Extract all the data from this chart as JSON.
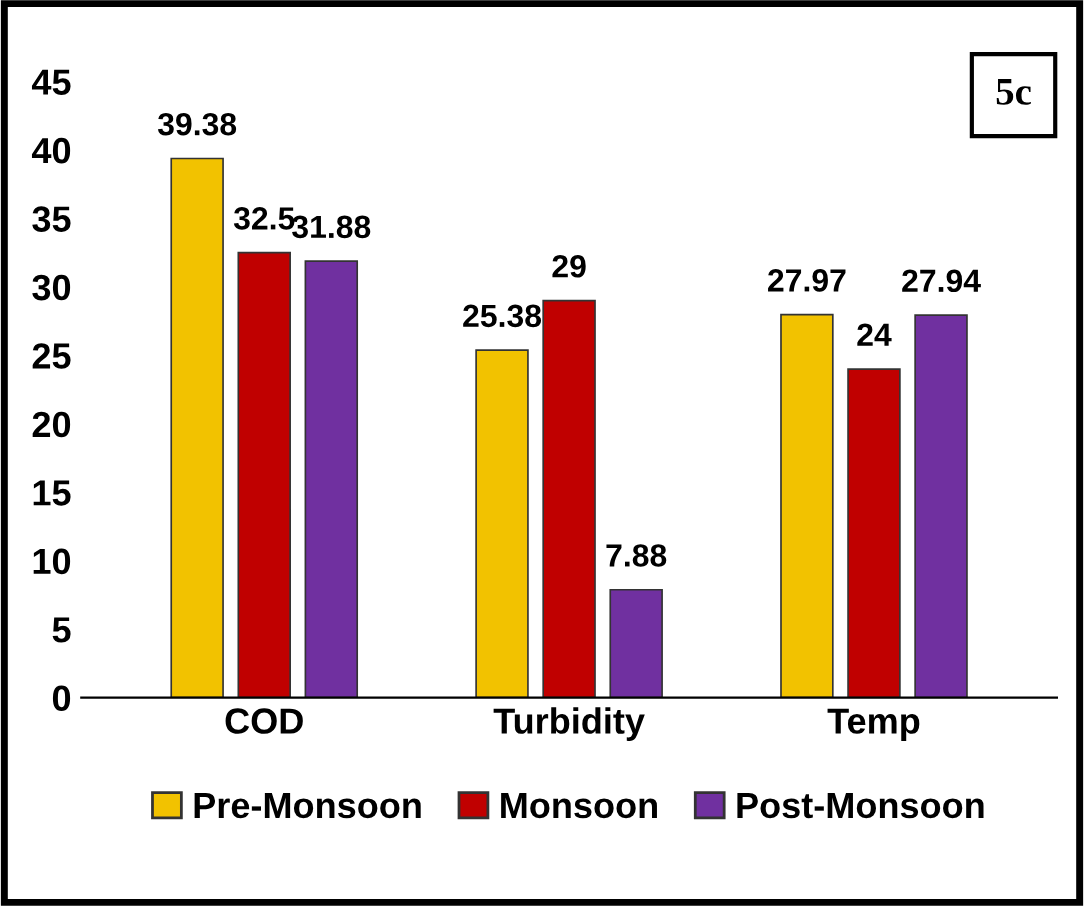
{
  "chart_data": {
    "type": "bar",
    "categories": [
      "COD",
      "Turbidity",
      "Temp"
    ],
    "series": [
      {
        "name": "Pre-Monsoon",
        "color": "#f2c200",
        "values": [
          39.38,
          25.38,
          27.97
        ]
      },
      {
        "name": "Monsoon",
        "color": "#c00000",
        "values": [
          32.5,
          29,
          24
        ]
      },
      {
        "name": "Post-Monsoon",
        "color": "#7030a0",
        "values": [
          31.88,
          7.88,
          27.94
        ]
      }
    ],
    "ylim": [
      0,
      45
    ],
    "yticks": [
      0,
      5,
      10,
      15,
      20,
      25,
      30,
      35,
      40,
      45
    ],
    "grid": false,
    "legend": "bottom",
    "data_labels": true,
    "annotations": [
      "5c"
    ]
  }
}
